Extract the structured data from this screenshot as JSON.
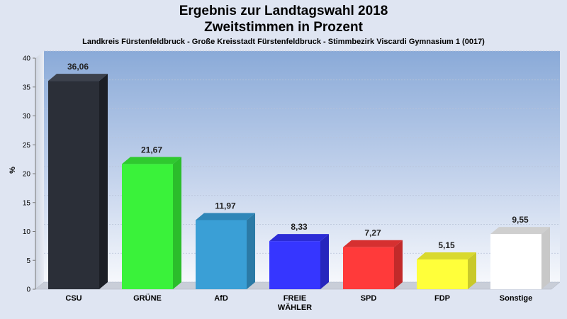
{
  "chart_data": {
    "type": "bar",
    "title_line1": "Ergebnis zur Landtagswahl 2018",
    "title_line2": "Zweitstimmen in Prozent",
    "subtitle": "Landkreis Fürstenfeldbruck - Große Kreisstadt Fürstenfeldbruck - Stimmbezirk Viscardi Gymnasium 1 (0017)",
    "ylabel": "%",
    "xlabel": "",
    "ylim": [
      0,
      40
    ],
    "yticks": [
      0,
      5,
      10,
      15,
      20,
      25,
      30,
      35,
      40
    ],
    "grid": true,
    "categories": [
      "CSU",
      "GRÜNE",
      "AfD",
      "FREIE WÄHLER",
      "SPD",
      "FDP",
      "Sonstige"
    ],
    "category_lines": [
      [
        "CSU"
      ],
      [
        "GRÜNE"
      ],
      [
        "AfD"
      ],
      [
        "FREIE",
        "WÄHLER"
      ],
      [
        "SPD"
      ],
      [
        "FDP"
      ],
      [
        "Sonstige"
      ]
    ],
    "values": [
      36.06,
      21.67,
      11.97,
      8.33,
      7.27,
      5.15,
      9.55
    ],
    "value_labels": [
      "36,06",
      "21,67",
      "11,97",
      "8,33",
      "7,27",
      "5,15",
      "9,55"
    ],
    "colors": [
      "#2b2f38",
      "#3af23a",
      "#3a9fd6",
      "#3636ff",
      "#ff3a3a",
      "#ffff3a",
      "#ffffff"
    ],
    "side_colors": [
      "#1c1f26",
      "#2bbd2b",
      "#2b7aa6",
      "#2626bd",
      "#c22a2a",
      "#c9c92a",
      "#c8c8c8"
    ],
    "top_colors": [
      "#3c414c",
      "#2fc92f",
      "#2f86b8",
      "#2c2cd6",
      "#d63030",
      "#d9d92e",
      "#cfcfcf"
    ]
  }
}
